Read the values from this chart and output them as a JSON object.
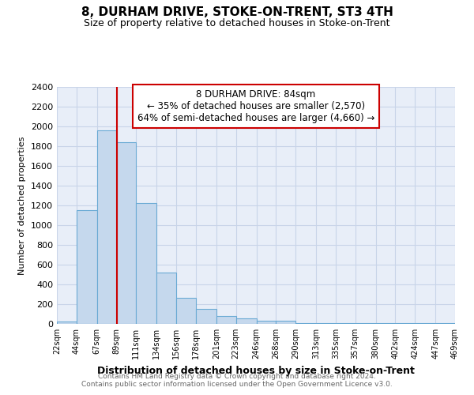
{
  "title": "8, DURHAM DRIVE, STOKE-ON-TRENT, ST3 4TH",
  "subtitle": "Size of property relative to detached houses in Stoke-on-Trent",
  "xlabel": "Distribution of detached houses by size in Stoke-on-Trent",
  "ylabel": "Number of detached properties",
  "footnote1": "Contains HM Land Registry data © Crown copyright and database right 2024.",
  "footnote2": "Contains public sector information licensed under the Open Government Licence v3.0.",
  "bin_edges": [
    22,
    44,
    67,
    89,
    111,
    134,
    156,
    178,
    201,
    223,
    246,
    268,
    290,
    313,
    335,
    357,
    380,
    402,
    424,
    447,
    469
  ],
  "bin_labels": [
    "22sqm",
    "44sqm",
    "67sqm",
    "89sqm",
    "111sqm",
    "134sqm",
    "156sqm",
    "178sqm",
    "201sqm",
    "223sqm",
    "246sqm",
    "268sqm",
    "290sqm",
    "313sqm",
    "335sqm",
    "357sqm",
    "380sqm",
    "402sqm",
    "424sqm",
    "447sqm",
    "469sqm"
  ],
  "bar_values": [
    25,
    1150,
    1960,
    1840,
    1225,
    520,
    265,
    150,
    80,
    55,
    35,
    30,
    10,
    10,
    5,
    5,
    5,
    5,
    5,
    5
  ],
  "bar_color": "#c5d8ed",
  "bar_edge_color": "#6aaad4",
  "vline_x": 89,
  "vline_color": "#cc0000",
  "annotation_title": "8 DURHAM DRIVE: 84sqm",
  "annotation_line1": "← 35% of detached houses are smaller (2,570)",
  "annotation_line2": "64% of semi-detached houses are larger (4,660) →",
  "annotation_box_color": "#ffffff",
  "annotation_box_edge": "#cc0000",
  "ylim": [
    0,
    2400
  ],
  "yticks": [
    0,
    200,
    400,
    600,
    800,
    1000,
    1200,
    1400,
    1600,
    1800,
    2000,
    2200,
    2400
  ],
  "grid_color": "#c8d4e8",
  "background_color": "#e8eef8",
  "title_fontsize": 11,
  "subtitle_fontsize": 9
}
